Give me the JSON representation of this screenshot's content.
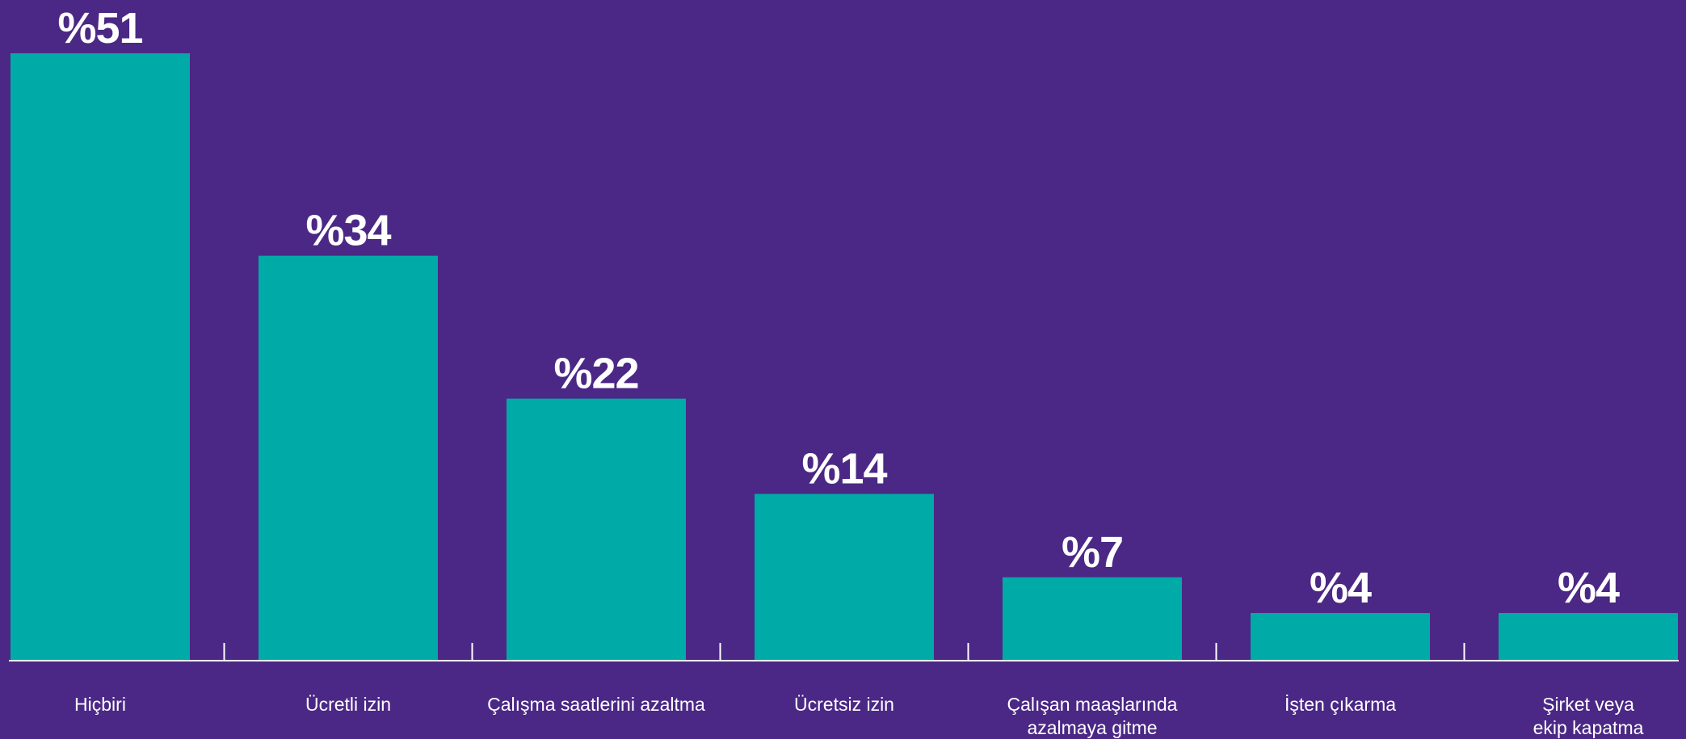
{
  "colors": {
    "background": "#4b2885",
    "bar": "#00aaa6",
    "text": "#ffffff"
  },
  "chart_data": {
    "type": "bar",
    "title": "",
    "xlabel": "",
    "ylabel": "",
    "ylim": [
      0,
      51
    ],
    "grid": false,
    "categories": [
      "Hiçbiri",
      "Ücretli izin",
      "Çalışma saatlerini azaltma",
      "Ücretsiz izin",
      "Çalışan maaşlarında azalmaya gitme",
      "İşten çıkarma",
      "Şirket veya ekip kapatma"
    ],
    "category_lines": [
      [
        "Hiçbiri"
      ],
      [
        "Ücretli izin"
      ],
      [
        "Çalışma saatlerini azaltma"
      ],
      [
        "Ücretsiz izin"
      ],
      [
        "Çalışan maaşlarında",
        "azalmaya gitme"
      ],
      [
        "İşten çıkarma"
      ],
      [
        "Şirket veya",
        "ekip kapatma"
      ]
    ],
    "values": [
      51,
      34,
      22,
      14,
      7,
      4,
      4
    ],
    "value_labels": [
      "%51",
      "%34",
      "%22",
      "%14",
      "%7",
      "%4",
      "%4"
    ]
  }
}
